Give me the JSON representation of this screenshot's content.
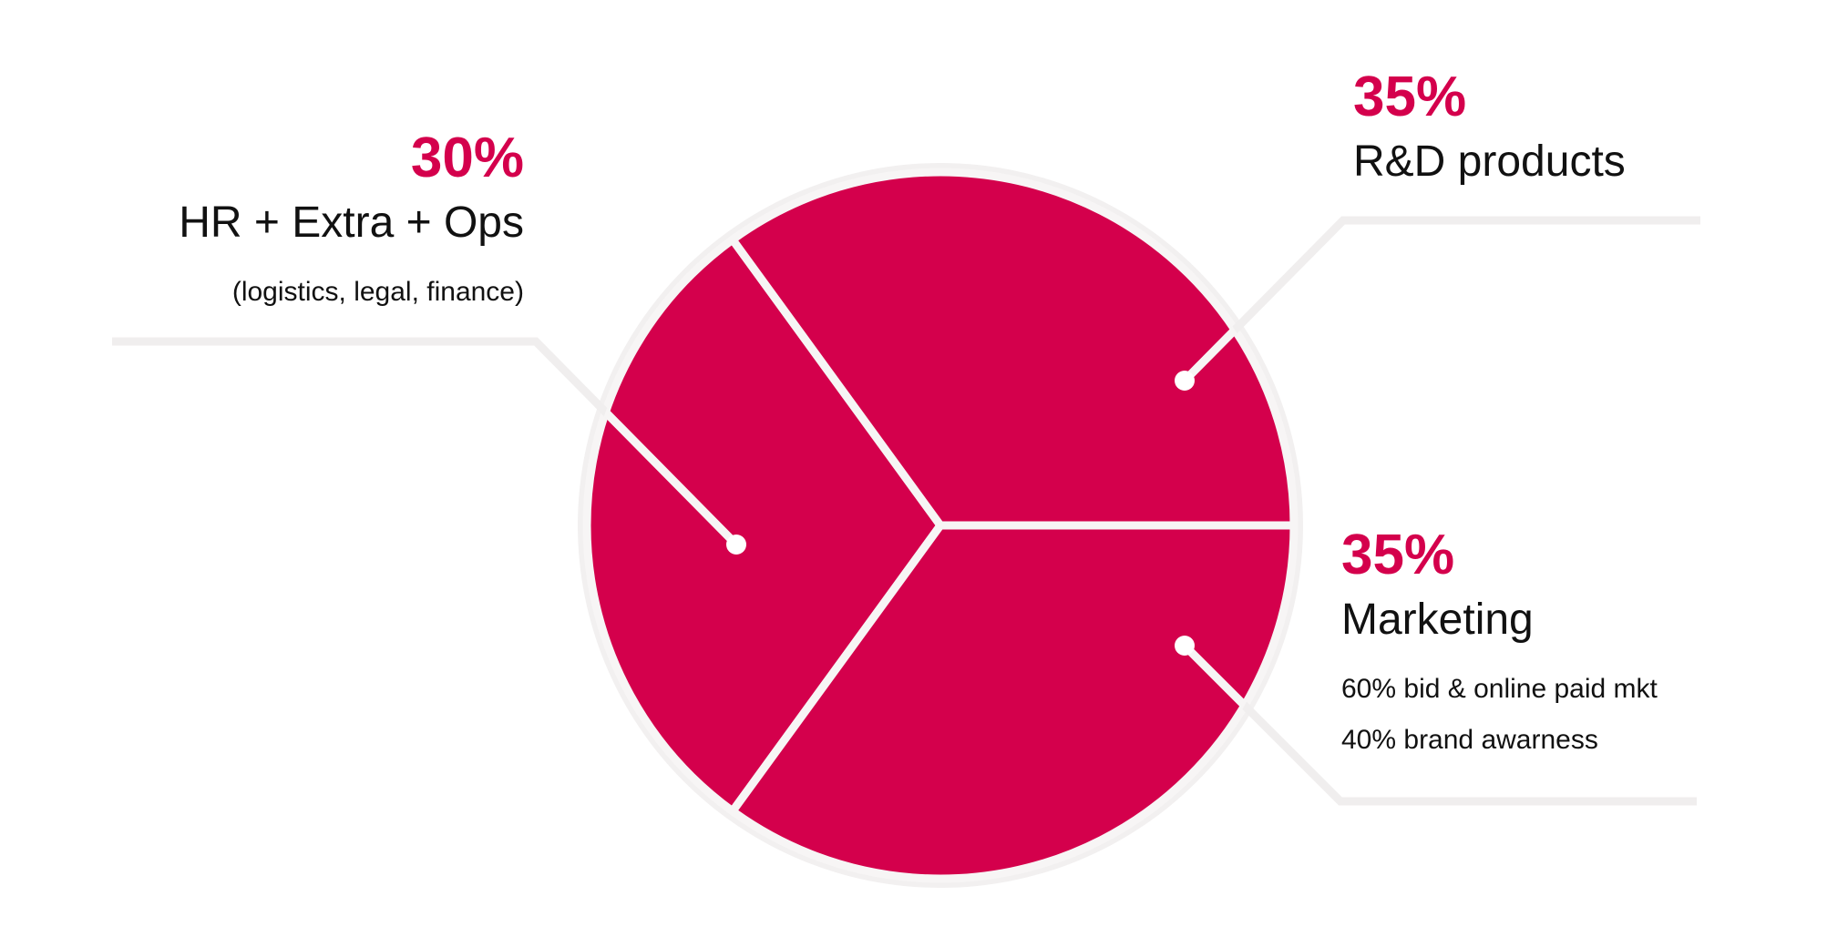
{
  "chart_data": {
    "type": "pie",
    "categories": [
      "HR + Extra + Ops",
      "R&D products",
      "Marketing"
    ],
    "values": [
      30,
      35,
      35
    ],
    "value_labels": [
      "30%",
      "35%",
      "35%"
    ],
    "details": [
      [
        "(logistics, legal, finance)"
      ],
      [],
      [
        "60% bid & online paid mkt",
        "40% brand awarness"
      ]
    ],
    "color": "#d4004c"
  }
}
